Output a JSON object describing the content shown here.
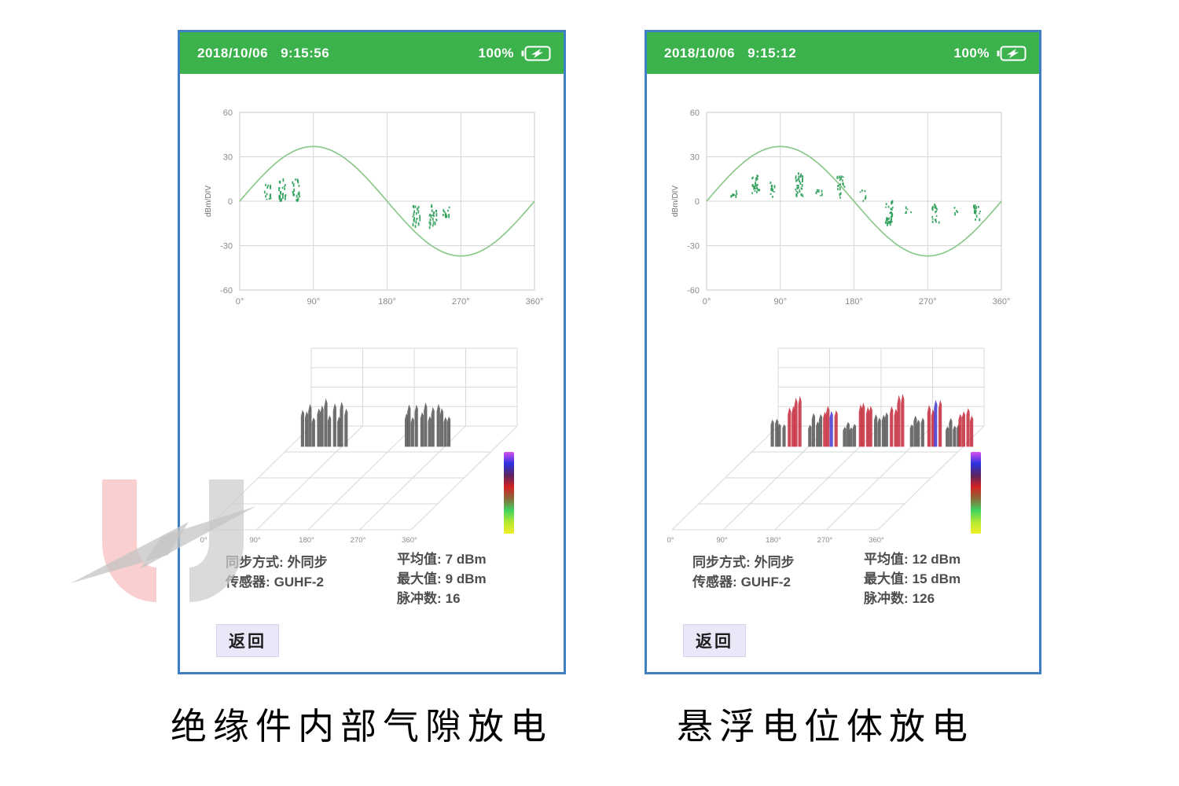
{
  "colors": {
    "header_green": "#3cb24c",
    "border_blue": "#3f80c4",
    "sine": "#8bc98b",
    "point": "#2a9d57",
    "gray_bar": "#5a5a5a",
    "red_bar": "#c63040",
    "colorbar_stops": [
      "#d84fee",
      "#2b32e0",
      "#5a2460",
      "#d42222",
      "#8a6a3a",
      "#3ed45e",
      "#b4e832",
      "#f0ee28"
    ]
  },
  "panels": [
    {
      "header": {
        "date": "2018/10/06",
        "time": "9:15:56",
        "battery": "100%"
      },
      "info": {
        "rows_left": [
          {
            "label": "同步方式:",
            "value": "外同步"
          },
          {
            "label": "传感器:",
            "value": "GUHF-2"
          }
        ],
        "rows_right": [
          {
            "label": "平均值:",
            "value": "7 dBm"
          },
          {
            "label": "最大值:",
            "value": "9 dBm"
          },
          {
            "label": "脉冲数:",
            "value": "16"
          }
        ]
      },
      "back_label": "返回",
      "caption": "绝缘件内部气隙放电"
    },
    {
      "header": {
        "date": "2018/10/06",
        "time": "9:15:12",
        "battery": "100%"
      },
      "info": {
        "rows_left": [
          {
            "label": "同步方式:",
            "value": "外同步"
          },
          {
            "label": "传感器:",
            "value": "GUHF-2"
          }
        ],
        "rows_right": [
          {
            "label": "平均值:",
            "value": "12 dBm"
          },
          {
            "label": "最大值:",
            "value": "15 dBm"
          },
          {
            "label": "脉冲数:",
            "value": "126"
          }
        ]
      },
      "back_label": "返回",
      "caption": "悬浮电位体放电"
    }
  ],
  "chart_data": [
    {
      "type": "scatter",
      "name": "prpd-left",
      "ylabel": "dBm/DIV",
      "xlim": [
        0,
        360
      ],
      "ylim": [
        -60,
        60
      ],
      "grid": true,
      "x_ticks": [
        {
          "v": 0,
          "label": "0°"
        },
        {
          "v": 90,
          "label": "90°"
        },
        {
          "v": 180,
          "label": "180°"
        },
        {
          "v": 270,
          "label": "270°"
        },
        {
          "v": 360,
          "label": "360°"
        }
      ],
      "y_ticks": [
        {
          "v": 60,
          "label": "60"
        },
        {
          "v": 30,
          "label": "30"
        },
        {
          "v": 0,
          "label": "0"
        },
        {
          "v": -30,
          "label": "-30"
        },
        {
          "v": -60,
          "label": "-60"
        }
      ],
      "sine_amplitude": 37,
      "clusters_note": "each cluster = [phase_deg, dBm_min, dBm_max, point_count]",
      "clusters": [
        [
          34,
          0,
          12,
          14
        ],
        [
          52,
          0,
          16,
          26
        ],
        [
          69,
          0,
          16,
          22
        ],
        [
          216,
          -18,
          -3,
          22
        ],
        [
          236,
          -18,
          -2,
          26
        ],
        [
          252,
          -14,
          -4,
          14
        ]
      ]
    },
    {
      "type": "prps3d",
      "name": "prps-left",
      "x_ticks": [
        "0°",
        "90°",
        "180°",
        "270°",
        "360°"
      ],
      "groups_note": "each group = spike cluster {phase_deg, color, relative_height}",
      "groups": [
        {
          "phase": 32,
          "c": "gray",
          "h": 0.88
        },
        {
          "phase": 60,
          "c": "gray",
          "h": 0.96
        },
        {
          "phase": 88,
          "c": "gray",
          "h": 0.9
        },
        {
          "phase": 212,
          "c": "gray",
          "h": 0.88
        },
        {
          "phase": 240,
          "c": "gray",
          "h": 0.96
        },
        {
          "phase": 268,
          "c": "gray",
          "h": 0.9
        }
      ]
    },
    {
      "type": "scatter",
      "name": "prpd-right",
      "ylabel": "dBm/DIV",
      "xlim": [
        0,
        360
      ],
      "ylim": [
        -60,
        60
      ],
      "grid": true,
      "x_ticks": [
        {
          "v": 0,
          "label": "0°"
        },
        {
          "v": 90,
          "label": "90°"
        },
        {
          "v": 180,
          "label": "180°"
        },
        {
          "v": 270,
          "label": "270°"
        },
        {
          "v": 360,
          "label": "360°"
        }
      ],
      "y_ticks": [
        {
          "v": 60,
          "label": "60"
        },
        {
          "v": 30,
          "label": "30"
        },
        {
          "v": 0,
          "label": "0"
        },
        {
          "v": -30,
          "label": "-30"
        },
        {
          "v": -60,
          "label": "-60"
        }
      ],
      "sine_amplitude": 37,
      "clusters_note": "each cluster = [phase_deg, dBm_min, dBm_max, point_count]",
      "clusters": [
        [
          34,
          3,
          8,
          8
        ],
        [
          60,
          3,
          17,
          26
        ],
        [
          81,
          3,
          13,
          10
        ],
        [
          113,
          1,
          19,
          30
        ],
        [
          137,
          3,
          7,
          6
        ],
        [
          164,
          1,
          17,
          20
        ],
        [
          191,
          0,
          8,
          6
        ],
        [
          223,
          -16,
          1,
          30
        ],
        [
          247,
          -8,
          -3,
          5
        ],
        [
          280,
          -16,
          -2,
          18
        ],
        [
          304,
          -9,
          -4,
          4
        ],
        [
          330,
          -13,
          -2,
          15
        ]
      ]
    },
    {
      "type": "prps3d",
      "name": "prps-right",
      "x_ticks": [
        "0°",
        "90°",
        "180°",
        "270°",
        "360°"
      ],
      "groups_note": "each group = spike cluster {phase_deg, color, relative_height}",
      "groups": [
        {
          "phase": 37,
          "c": "gray",
          "h": 0.62
        },
        {
          "phase": 66,
          "c": "red",
          "h": 1.0
        },
        {
          "phase": 102,
          "c": "gray",
          "h": 0.66
        },
        {
          "phase": 128,
          "c": "red",
          "h": 1.05
        },
        {
          "phase": 162,
          "c": "gray",
          "h": 0.6
        },
        {
          "phase": 190,
          "c": "red",
          "h": 0.95
        },
        {
          "phase": 218,
          "c": "gray",
          "h": 0.68
        },
        {
          "phase": 245,
          "c": "red",
          "h": 1.05
        },
        {
          "phase": 280,
          "c": "gray",
          "h": 0.62
        },
        {
          "phase": 310,
          "c": "red",
          "h": 1.0
        },
        {
          "phase": 342,
          "c": "gray",
          "h": 0.6
        },
        {
          "phase": 365,
          "c": "red",
          "h": 0.98
        }
      ]
    }
  ]
}
